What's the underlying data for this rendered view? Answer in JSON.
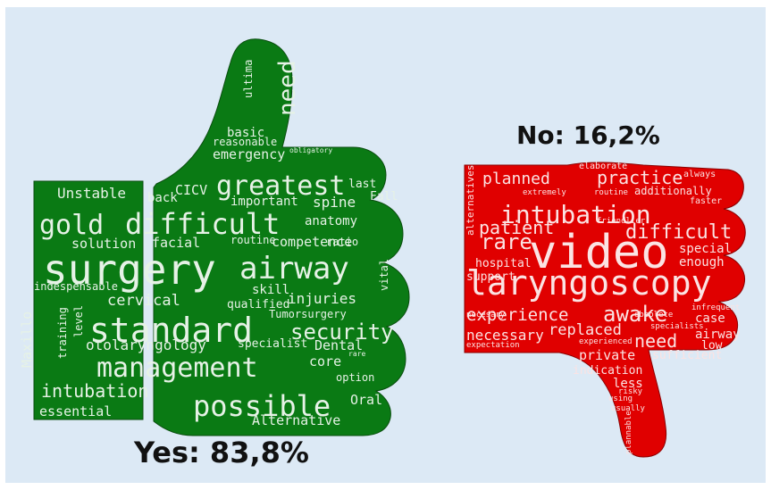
{
  "yes_label": "Yes: 83,8%",
  "no_label": "No: 16,2%",
  "colors": {
    "thumb_up": "#0a7a14",
    "thumb_down": "#e00000",
    "background": "#dce9f5"
  },
  "yes_words": [
    "surgery",
    "airway",
    "standard",
    "difficult",
    "management",
    "greatest",
    "gold",
    "possible",
    "security",
    "intubation",
    "need",
    "otolaryngology",
    "cervical",
    "Maxillo",
    "injuries",
    "facial",
    "solution",
    "competence",
    "spine",
    "Unstable",
    "emergency",
    "essential",
    "Alternative",
    "Dental",
    "Oral",
    "core",
    "skill",
    "anatomy",
    "basic",
    "reasonable",
    "important",
    "training",
    "level",
    "indespensable",
    "specialist",
    "qualified",
    "routine",
    "Tumorsurgery",
    "vital",
    "CICV",
    "back",
    "last",
    "Fall",
    "ratio",
    "ultima",
    "option",
    "obligatory",
    "rare"
  ],
  "no_words": [
    "video",
    "laryngoscopy",
    "intubation",
    "difficult",
    "practice",
    "experience",
    "awake",
    "need",
    "rare",
    "patient",
    "planned",
    "replaced",
    "necessary",
    "private",
    "sufficient",
    "indication",
    "less",
    "special",
    "enough",
    "hospital",
    "support",
    "airway",
    "case",
    "low",
    "alternatives",
    "additionally",
    "elaborate",
    "always",
    "faster",
    "extremely",
    "routine",
    "friendlier",
    "infrequent",
    "specialists",
    "experienced",
    "obsolete",
    "expectation",
    "necesary",
    "risky",
    "using",
    "usually",
    "plannable"
  ]
}
